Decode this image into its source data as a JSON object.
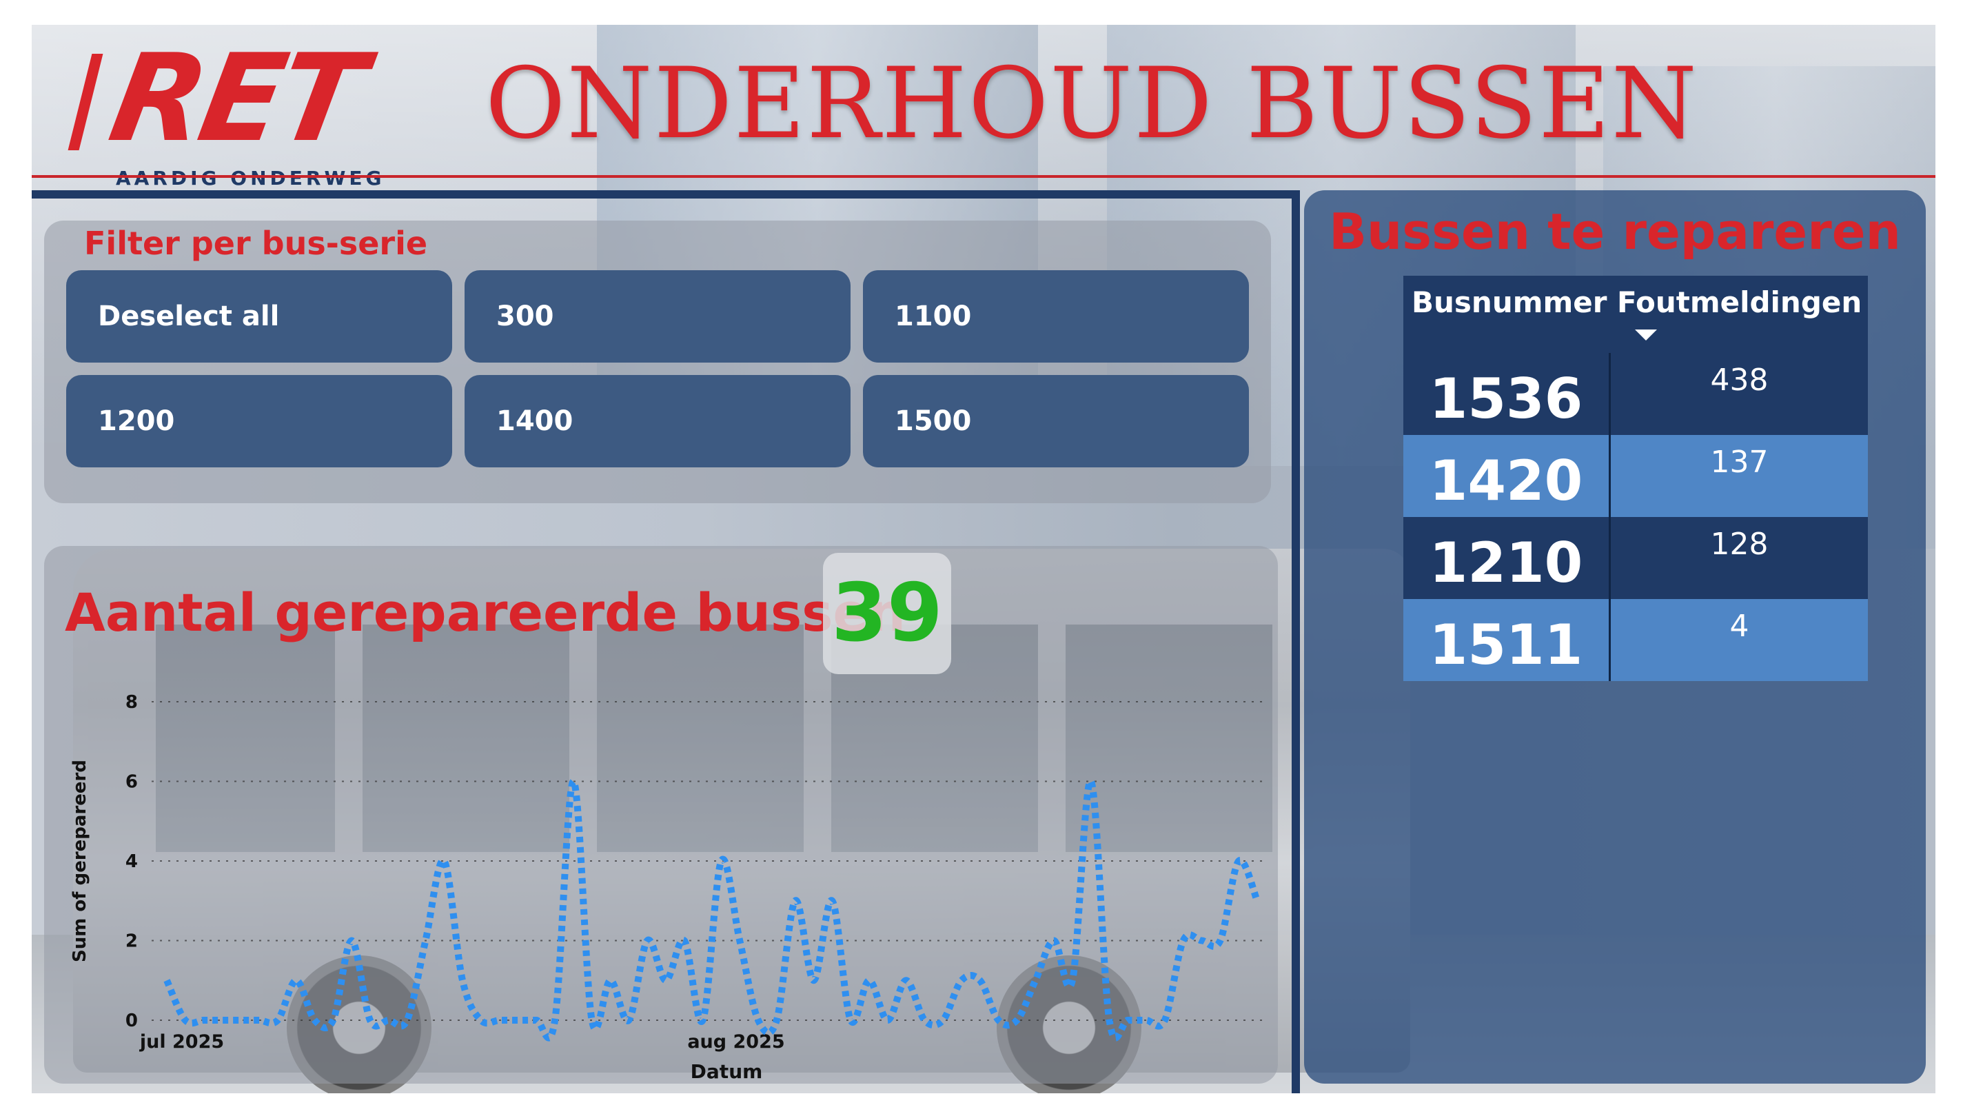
{
  "header": {
    "logo_text": "RET",
    "tagline": "AARDIG ONDERWEG",
    "title": "ONDERHOUD BUSSEN"
  },
  "filter": {
    "title": "Filter per bus-serie",
    "options": [
      "Deselect all",
      "300",
      "1100",
      "1200",
      "1400",
      "1500"
    ]
  },
  "repaired": {
    "title": "Aantal gerepareerde bussen",
    "kpi": "39"
  },
  "colors": {
    "accent_red": "#d9252b",
    "navy": "#1f3a66",
    "slicer": "#3d5a82",
    "kpi_green": "#23b523",
    "line": "#2e8ff0"
  },
  "chart_data": {
    "type": "line",
    "title": "",
    "xlabel": "Datum",
    "ylabel": "Sum of gerepareerd",
    "x_ticks": [
      "jul 2025",
      "aug 2025"
    ],
    "x_range": [
      "2025-07-01",
      "2025-08-31"
    ],
    "ylim": [
      0,
      8
    ],
    "y_ticks": [
      0,
      2,
      4,
      6,
      8
    ],
    "grid": true,
    "series": [
      {
        "values": [
          1,
          0,
          0,
          0,
          0,
          0,
          0,
          1,
          0,
          0,
          2,
          0,
          0,
          0,
          2,
          4,
          1,
          0,
          0,
          0,
          0,
          0,
          6,
          0,
          1,
          0,
          2,
          1,
          2,
          0,
          4,
          2,
          0,
          0,
          3,
          1,
          3,
          0,
          1,
          0,
          1,
          0,
          0,
          1,
          1,
          0,
          0,
          1,
          2,
          1,
          6,
          0,
          0,
          0,
          0,
          2,
          2,
          2,
          4,
          3
        ]
      }
    ]
  },
  "bus_table": {
    "title": "Bussen te repareren",
    "columns": [
      "Busnummer",
      "Foutmeldingen"
    ],
    "rows": [
      {
        "bus": "1536",
        "errors": "438"
      },
      {
        "bus": "1420",
        "errors": "137"
      },
      {
        "bus": "1210",
        "errors": "128"
      },
      {
        "bus": "1511",
        "errors": "4"
      }
    ]
  }
}
